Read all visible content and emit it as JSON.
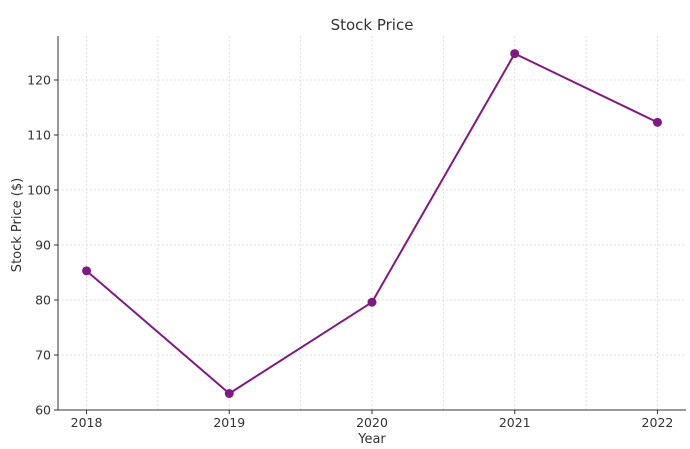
{
  "chart_data": {
    "type": "line",
    "title": "Stock Price",
    "xlabel": "Year",
    "ylabel": "Stock Price ($)",
    "x": [
      2018,
      2019,
      2020,
      2021,
      2022
    ],
    "series": [
      {
        "values": [
          85.3,
          63.0,
          79.6,
          124.8,
          112.3
        ]
      }
    ],
    "ylim": [
      60,
      128
    ],
    "yticks": [
      60,
      70,
      80,
      90,
      100,
      110,
      120
    ],
    "xlim": [
      2017.8,
      2022.2
    ],
    "grid": true,
    "legend": "none",
    "colors": {
      "line": "#7f1a83",
      "marker": "#7f1a83"
    }
  }
}
